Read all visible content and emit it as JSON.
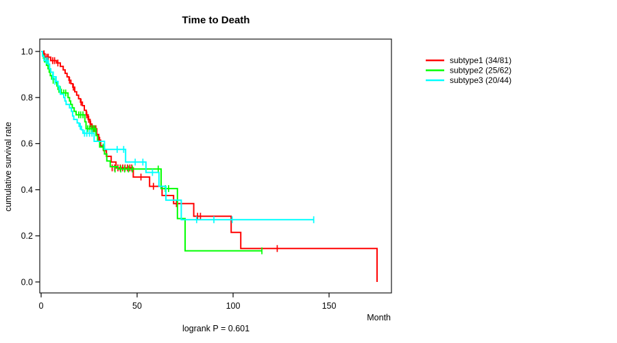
{
  "chart_data": {
    "type": "line",
    "subtype": "kaplan-meier-step-curves",
    "title": "Time to Death",
    "xlabel": "Month",
    "ylabel": "cumulative survival rate",
    "annotation": "logrank P = 0.601",
    "xlim": [
      0,
      182
    ],
    "ylim": [
      0,
      1.05
    ],
    "xticks": [
      0,
      50,
      100,
      150
    ],
    "xtick_labels": [
      "0",
      "50",
      "100",
      "150"
    ],
    "yticks": [
      0,
      0.2,
      0.4,
      0.6,
      0.8,
      1
    ],
    "ytick_labels": [
      "0.0",
      "0.2",
      "0.4",
      "0.6",
      "0.8",
      "1.0"
    ],
    "grid": false,
    "legend_position": "outside-right",
    "frame_color": "#262626",
    "series": [
      {
        "name": "subtype1",
        "label": "subtype1 (34/81)",
        "events": 34,
        "n": 81,
        "color": "#ff0000",
        "end_x": null,
        "steps": [
          [
            0,
            1.0
          ],
          [
            1,
            0.99
          ],
          [
            2,
            0.975
          ],
          [
            5,
            0.96
          ],
          [
            8,
            0.95
          ],
          [
            10,
            0.935
          ],
          [
            11.5,
            0.92
          ],
          [
            12.5,
            0.905
          ],
          [
            13.5,
            0.89
          ],
          [
            14.5,
            0.875
          ],
          [
            15.5,
            0.86
          ],
          [
            16.5,
            0.845
          ],
          [
            17.5,
            0.825
          ],
          [
            18.5,
            0.81
          ],
          [
            19.5,
            0.795
          ],
          [
            20.5,
            0.78
          ],
          [
            21.5,
            0.765
          ],
          [
            22.5,
            0.745
          ],
          [
            23.5,
            0.725
          ],
          [
            24.5,
            0.705
          ],
          [
            25.5,
            0.685
          ],
          [
            26.5,
            0.665
          ],
          [
            29,
            0.64
          ],
          [
            30,
            0.615
          ],
          [
            31,
            0.59
          ],
          [
            32.5,
            0.57
          ],
          [
            34,
            0.545
          ],
          [
            36.5,
            0.52
          ],
          [
            39,
            0.495
          ],
          [
            48,
            0.455
          ],
          [
            56.5,
            0.415
          ],
          [
            63,
            0.375
          ],
          [
            69,
            0.34
          ],
          [
            79.5,
            0.285
          ],
          [
            99,
            0.215
          ],
          [
            104,
            0.145
          ],
          [
            175,
            0.0
          ]
        ],
        "censors": [
          [
            1.5,
            0.99
          ],
          [
            3,
            0.975
          ],
          [
            3.7,
            0.975
          ],
          [
            6,
            0.96
          ],
          [
            7,
            0.96
          ],
          [
            8.7,
            0.95
          ],
          [
            14.8,
            0.875
          ],
          [
            16.8,
            0.845
          ],
          [
            20.8,
            0.78
          ],
          [
            23.8,
            0.725
          ],
          [
            24.8,
            0.705
          ],
          [
            25.8,
            0.685
          ],
          [
            27,
            0.665
          ],
          [
            27.8,
            0.665
          ],
          [
            28.5,
            0.665
          ],
          [
            30.5,
            0.615
          ],
          [
            37,
            0.495
          ],
          [
            38.3,
            0.495
          ],
          [
            40,
            0.495
          ],
          [
            41.2,
            0.495
          ],
          [
            42.5,
            0.495
          ],
          [
            43.7,
            0.495
          ],
          [
            45,
            0.495
          ],
          [
            46.2,
            0.495
          ],
          [
            47.2,
            0.495
          ],
          [
            52,
            0.455
          ],
          [
            58.5,
            0.415
          ],
          [
            70.5,
            0.34
          ],
          [
            81.5,
            0.285
          ],
          [
            83,
            0.285
          ],
          [
            123,
            0.145
          ]
        ]
      },
      {
        "name": "subtype2",
        "label": "subtype2 (25/62)",
        "events": 25,
        "n": 62,
        "color": "#00ff00",
        "end_x": 115,
        "steps": [
          [
            0,
            1.0
          ],
          [
            0.7,
            0.985
          ],
          [
            1.2,
            0.97
          ],
          [
            1.8,
            0.955
          ],
          [
            2.8,
            0.94
          ],
          [
            3.6,
            0.925
          ],
          [
            4.2,
            0.91
          ],
          [
            4.8,
            0.895
          ],
          [
            5.5,
            0.88
          ],
          [
            7.5,
            0.865
          ],
          [
            8.2,
            0.85
          ],
          [
            8.8,
            0.835
          ],
          [
            10.5,
            0.82
          ],
          [
            14,
            0.8
          ],
          [
            14.8,
            0.785
          ],
          [
            15.4,
            0.77
          ],
          [
            16.2,
            0.755
          ],
          [
            17.2,
            0.74
          ],
          [
            18.2,
            0.725
          ],
          [
            22.8,
            0.695
          ],
          [
            23.4,
            0.665
          ],
          [
            28.6,
            0.635
          ],
          [
            29.4,
            0.61
          ],
          [
            30.5,
            0.585
          ],
          [
            33,
            0.555
          ],
          [
            34.2,
            0.525
          ],
          [
            36,
            0.5
          ],
          [
            40,
            0.49
          ],
          [
            62.5,
            0.405
          ],
          [
            71,
            0.275
          ],
          [
            75,
            0.135
          ]
        ],
        "censors": [
          [
            6.3,
            0.875
          ],
          [
            9.3,
            0.835
          ],
          [
            10,
            0.835
          ],
          [
            11.8,
            0.82
          ],
          [
            12.8,
            0.82
          ],
          [
            19.6,
            0.725
          ],
          [
            20.6,
            0.725
          ],
          [
            21.8,
            0.725
          ],
          [
            24.2,
            0.665
          ],
          [
            25.2,
            0.665
          ],
          [
            26.2,
            0.665
          ],
          [
            27.2,
            0.665
          ],
          [
            28,
            0.665
          ],
          [
            32.3,
            0.585
          ],
          [
            38.5,
            0.49
          ],
          [
            41.5,
            0.49
          ],
          [
            43.5,
            0.49
          ],
          [
            45.5,
            0.49
          ],
          [
            47.5,
            0.49
          ],
          [
            61,
            0.49
          ],
          [
            64.7,
            0.405
          ],
          [
            66.4,
            0.405
          ],
          [
            115,
            0.135
          ]
        ]
      },
      {
        "name": "subtype3",
        "label": "subtype3 (20/44)",
        "events": 20,
        "n": 44,
        "color": "#00ffff",
        "end_x": 142,
        "steps": [
          [
            0,
            1.0
          ],
          [
            0.7,
            0.98
          ],
          [
            1.5,
            0.96
          ],
          [
            3.8,
            0.945
          ],
          [
            4.4,
            0.925
          ],
          [
            5,
            0.91
          ],
          [
            6.3,
            0.89
          ],
          [
            7.8,
            0.87
          ],
          [
            8.8,
            0.85
          ],
          [
            9.4,
            0.835
          ],
          [
            10,
            0.815
          ],
          [
            11.8,
            0.8
          ],
          [
            12.4,
            0.785
          ],
          [
            13,
            0.77
          ],
          [
            14.8,
            0.755
          ],
          [
            15.8,
            0.74
          ],
          [
            16.4,
            0.72
          ],
          [
            17,
            0.705
          ],
          [
            18.8,
            0.69
          ],
          [
            19.8,
            0.675
          ],
          [
            21,
            0.66
          ],
          [
            21.8,
            0.645
          ],
          [
            27.6,
            0.61
          ],
          [
            33,
            0.575
          ],
          [
            44,
            0.52
          ],
          [
            54.6,
            0.475
          ],
          [
            61.4,
            0.415
          ],
          [
            65,
            0.355
          ],
          [
            73,
            0.27
          ]
        ],
        "censors": [
          [
            2.6,
            0.96
          ],
          [
            3.4,
            0.96
          ],
          [
            6,
            0.89
          ],
          [
            7.2,
            0.87
          ],
          [
            9.8,
            0.835
          ],
          [
            20.4,
            0.675
          ],
          [
            22.6,
            0.645
          ],
          [
            23.8,
            0.645
          ],
          [
            25.2,
            0.645
          ],
          [
            26.5,
            0.645
          ],
          [
            39.6,
            0.575
          ],
          [
            43,
            0.575
          ],
          [
            49,
            0.52
          ],
          [
            53,
            0.52
          ],
          [
            58,
            0.475
          ],
          [
            81,
            0.27
          ],
          [
            90,
            0.27
          ],
          [
            99.5,
            0.27
          ],
          [
            142,
            0.27
          ]
        ]
      }
    ]
  }
}
